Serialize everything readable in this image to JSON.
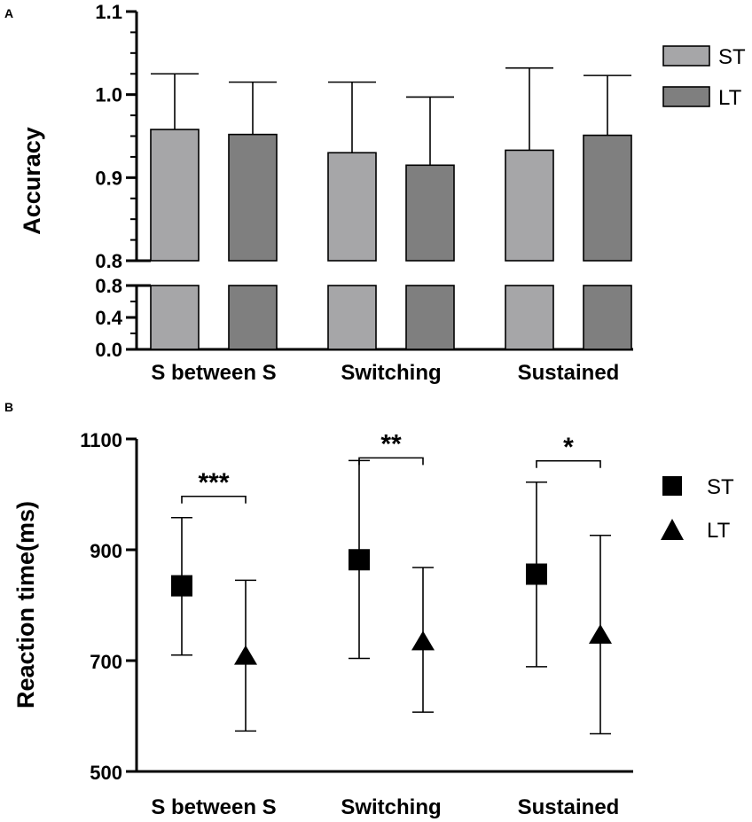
{
  "chart_data": [
    {
      "panel": "A",
      "type": "bar",
      "ylabel": "Accuracy",
      "categories": [
        "S between S",
        "Switching",
        "Sustained"
      ],
      "series": [
        {
          "name": "ST",
          "values": [
            0.958,
            0.93,
            0.933
          ],
          "error_upper": [
            1.025,
            1.015,
            1.032
          ]
        },
        {
          "name": "LT",
          "values": [
            0.952,
            0.915,
            0.951
          ],
          "error_upper": [
            1.015,
            0.997,
            1.023
          ]
        }
      ],
      "y_axis_broken": true,
      "upper_range": [
        0.8,
        1.1
      ],
      "upper_ticks": [
        "0.8",
        "0.9",
        "1.0",
        "1.1"
      ],
      "lower_range": [
        0.0,
        0.8
      ],
      "lower_ticks": [
        "0.0",
        "0.4",
        "0.8"
      ],
      "colors": {
        "ST": "#a6a6a8",
        "LT": "#7f7f7f"
      },
      "legend": "right"
    },
    {
      "panel": "B",
      "type": "scatter",
      "ylabel": "Reaction time(ms)",
      "categories": [
        "S between S",
        "Switching",
        "Sustained"
      ],
      "series": [
        {
          "name": "ST",
          "marker": "square",
          "values": [
            835,
            882,
            856
          ],
          "error_low": [
            710,
            704,
            689
          ],
          "error_high": [
            958,
            1061,
            1022
          ]
        },
        {
          "name": "LT",
          "marker": "triangle",
          "values": [
            706,
            732,
            744
          ],
          "error_low": [
            573,
            607,
            568
          ],
          "error_high": [
            845,
            868,
            926
          ]
        }
      ],
      "ylim": [
        500,
        1100
      ],
      "yticks": [
        "500",
        "700",
        "900",
        "1100"
      ],
      "significance": [
        "***",
        "**",
        "*"
      ],
      "legend": "right"
    }
  ]
}
